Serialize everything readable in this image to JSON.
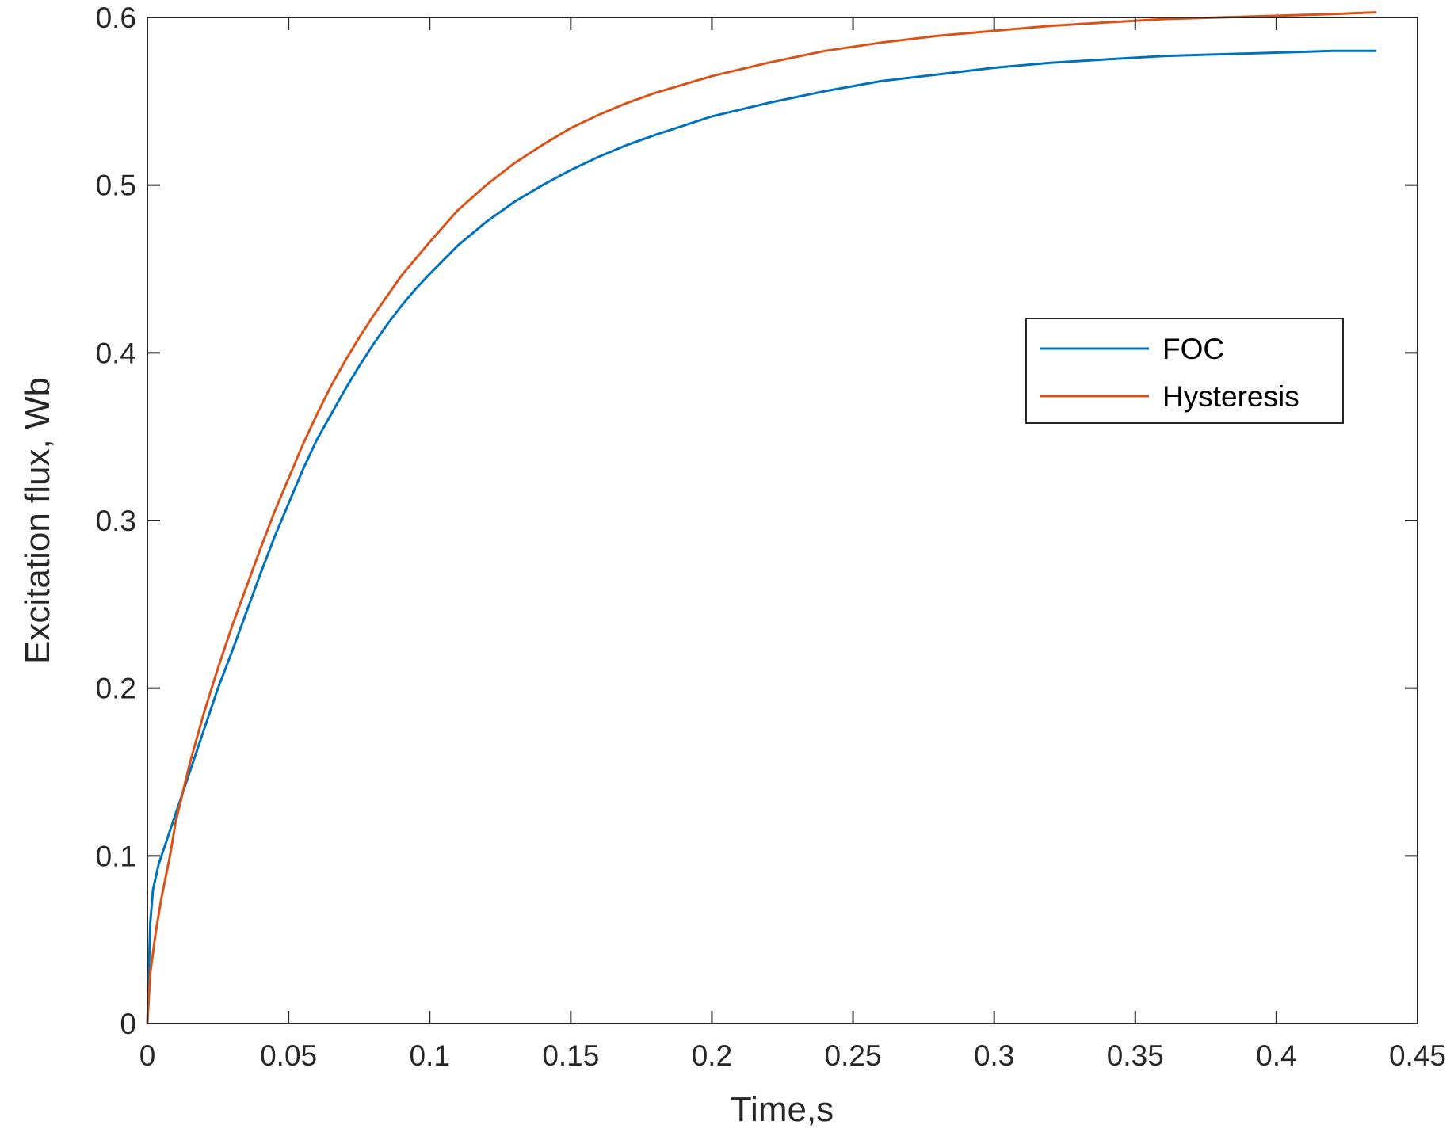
{
  "chart_data": {
    "type": "line",
    "title": "",
    "xlabel": "Time,s",
    "ylabel": "Excitation flux, Wb",
    "xlim": [
      0,
      0.45
    ],
    "ylim": [
      0,
      0.6
    ],
    "xticks": [
      0,
      0.05,
      0.1,
      0.15,
      0.2,
      0.25,
      0.3,
      0.35,
      0.4,
      0.45
    ],
    "xtick_labels": [
      "0",
      "0.05",
      "0.1",
      "0.15",
      "0.2",
      "0.25",
      "0.3",
      "0.35",
      "0.4",
      "0.45"
    ],
    "yticks": [
      0,
      0.1,
      0.2,
      0.3,
      0.4,
      0.5,
      0.6
    ],
    "ytick_labels": [
      "0",
      "0.1",
      "0.2",
      "0.3",
      "0.4",
      "0.5",
      "0.6"
    ],
    "grid": false,
    "legend_position": "right-upper",
    "series": [
      {
        "name": "FOC",
        "color": "#0072BD",
        "points": [
          [
            0,
            0
          ],
          [
            0.001,
            0.06
          ],
          [
            0.002,
            0.08
          ],
          [
            0.004,
            0.095
          ],
          [
            0.007,
            0.11
          ],
          [
            0.01,
            0.125
          ],
          [
            0.015,
            0.15
          ],
          [
            0.02,
            0.175
          ],
          [
            0.025,
            0.2
          ],
          [
            0.03,
            0.222
          ],
          [
            0.035,
            0.245
          ],
          [
            0.04,
            0.268
          ],
          [
            0.045,
            0.29
          ],
          [
            0.05,
            0.31
          ],
          [
            0.055,
            0.33
          ],
          [
            0.06,
            0.348
          ],
          [
            0.065,
            0.363
          ],
          [
            0.07,
            0.378
          ],
          [
            0.075,
            0.392
          ],
          [
            0.08,
            0.405
          ],
          [
            0.085,
            0.417
          ],
          [
            0.09,
            0.428
          ],
          [
            0.095,
            0.438
          ],
          [
            0.1,
            0.447
          ],
          [
            0.11,
            0.464
          ],
          [
            0.12,
            0.478
          ],
          [
            0.13,
            0.49
          ],
          [
            0.14,
            0.5
          ],
          [
            0.15,
            0.509
          ],
          [
            0.16,
            0.517
          ],
          [
            0.17,
            0.524
          ],
          [
            0.18,
            0.53
          ],
          [
            0.2,
            0.541
          ],
          [
            0.22,
            0.549
          ],
          [
            0.24,
            0.556
          ],
          [
            0.26,
            0.562
          ],
          [
            0.28,
            0.566
          ],
          [
            0.3,
            0.57
          ],
          [
            0.32,
            0.573
          ],
          [
            0.34,
            0.575
          ],
          [
            0.36,
            0.577
          ],
          [
            0.38,
            0.578
          ],
          [
            0.4,
            0.579
          ],
          [
            0.42,
            0.58
          ],
          [
            0.435,
            0.58
          ]
        ]
      },
      {
        "name": "Hysteresis",
        "color": "#D95319",
        "points": [
          [
            0,
            0
          ],
          [
            0.001,
            0.03
          ],
          [
            0.003,
            0.055
          ],
          [
            0.005,
            0.075
          ],
          [
            0.008,
            0.1
          ],
          [
            0.01,
            0.12
          ],
          [
            0.015,
            0.155
          ],
          [
            0.02,
            0.185
          ],
          [
            0.025,
            0.212
          ],
          [
            0.03,
            0.237
          ],
          [
            0.035,
            0.26
          ],
          [
            0.04,
            0.283
          ],
          [
            0.045,
            0.305
          ],
          [
            0.05,
            0.325
          ],
          [
            0.055,
            0.345
          ],
          [
            0.06,
            0.363
          ],
          [
            0.065,
            0.38
          ],
          [
            0.07,
            0.395
          ],
          [
            0.075,
            0.409
          ],
          [
            0.08,
            0.422
          ],
          [
            0.085,
            0.434
          ],
          [
            0.09,
            0.446
          ],
          [
            0.095,
            0.456
          ],
          [
            0.1,
            0.466
          ],
          [
            0.11,
            0.485
          ],
          [
            0.12,
            0.5
          ],
          [
            0.13,
            0.513
          ],
          [
            0.14,
            0.524
          ],
          [
            0.15,
            0.534
          ],
          [
            0.16,
            0.542
          ],
          [
            0.17,
            0.549
          ],
          [
            0.18,
            0.555
          ],
          [
            0.2,
            0.565
          ],
          [
            0.22,
            0.573
          ],
          [
            0.24,
            0.58
          ],
          [
            0.26,
            0.585
          ],
          [
            0.28,
            0.589
          ],
          [
            0.3,
            0.592
          ],
          [
            0.32,
            0.595
          ],
          [
            0.34,
            0.597
          ],
          [
            0.36,
            0.599
          ],
          [
            0.38,
            0.6
          ],
          [
            0.4,
            0.601
          ],
          [
            0.42,
            0.602
          ],
          [
            0.435,
            0.603
          ]
        ]
      }
    ]
  }
}
